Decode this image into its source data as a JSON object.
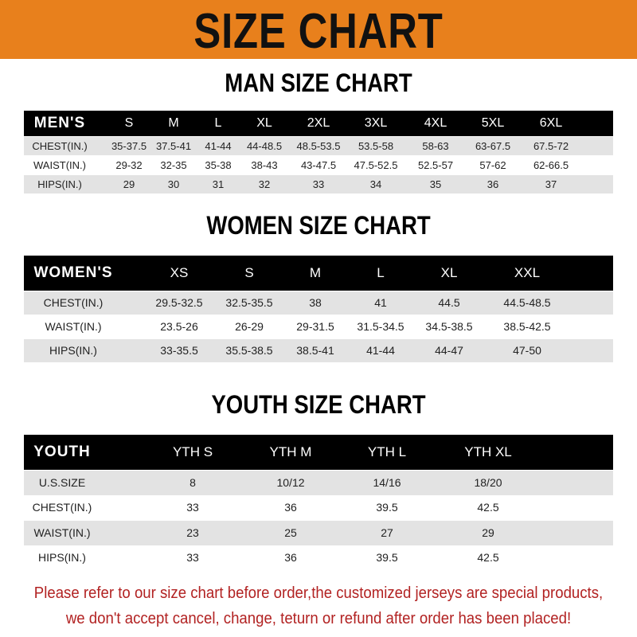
{
  "banner_title": "SIZE CHART",
  "colors": {
    "banner": "#e8801c",
    "header_row": "#000000",
    "stripe": "#e3e3e3",
    "notice": "#b22222"
  },
  "men": {
    "title": "MAN SIZE CHART",
    "header": [
      "MEN'S",
      "S",
      "M",
      "L",
      "XL",
      "2XL",
      "3XL",
      "4XL",
      "5XL",
      "6XL"
    ],
    "rows": [
      [
        "CHEST(IN.)",
        "35-37.5",
        "37.5-41",
        "41-44",
        "44-48.5",
        "48.5-53.5",
        "53.5-58",
        "58-63",
        "63-67.5",
        "67.5-72"
      ],
      [
        "WAIST(IN.)",
        "29-32",
        "32-35",
        "35-38",
        "38-43",
        "43-47.5",
        "47.5-52.5",
        "52.5-57",
        "57-62",
        "62-66.5"
      ],
      [
        "HIPS(IN.)",
        "29",
        "30",
        "31",
        "32",
        "33",
        "34",
        "35",
        "36",
        "37"
      ]
    ]
  },
  "women": {
    "title": "WOMEN SIZE CHART",
    "header": [
      "WOMEN'S",
      "XS",
      "S",
      "M",
      "L",
      "XL",
      "XXL"
    ],
    "rows": [
      [
        "CHEST(IN.)",
        "29.5-32.5",
        "32.5-35.5",
        "38",
        "41",
        "44.5",
        "44.5-48.5"
      ],
      [
        "WAIST(IN.)",
        "23.5-26",
        "26-29",
        "29-31.5",
        "31.5-34.5",
        "34.5-38.5",
        "38.5-42.5"
      ],
      [
        "HIPS(IN.)",
        "33-35.5",
        "35.5-38.5",
        "38.5-41",
        "41-44",
        "44-47",
        "47-50"
      ]
    ]
  },
  "youth": {
    "title": "YOUTH SIZE CHART",
    "header": [
      "YOUTH",
      "YTH S",
      "YTH M",
      "YTH L",
      "YTH XL"
    ],
    "rows": [
      [
        "U.S.SIZE",
        "8",
        "10/12",
        "14/16",
        "18/20"
      ],
      [
        "CHEST(IN.)",
        "33",
        "36",
        "39.5",
        "42.5"
      ],
      [
        "WAIST(IN.)",
        "23",
        "25",
        "27",
        "29"
      ],
      [
        "HIPS(IN.)",
        "33",
        "36",
        "39.5",
        "42.5"
      ]
    ]
  },
  "notice": {
    "line1": "Please refer to our size chart before order,the customized jerseys are special products,",
    "line2": "we don't accept cancel, change, teturn or refund after order has been placed!"
  }
}
